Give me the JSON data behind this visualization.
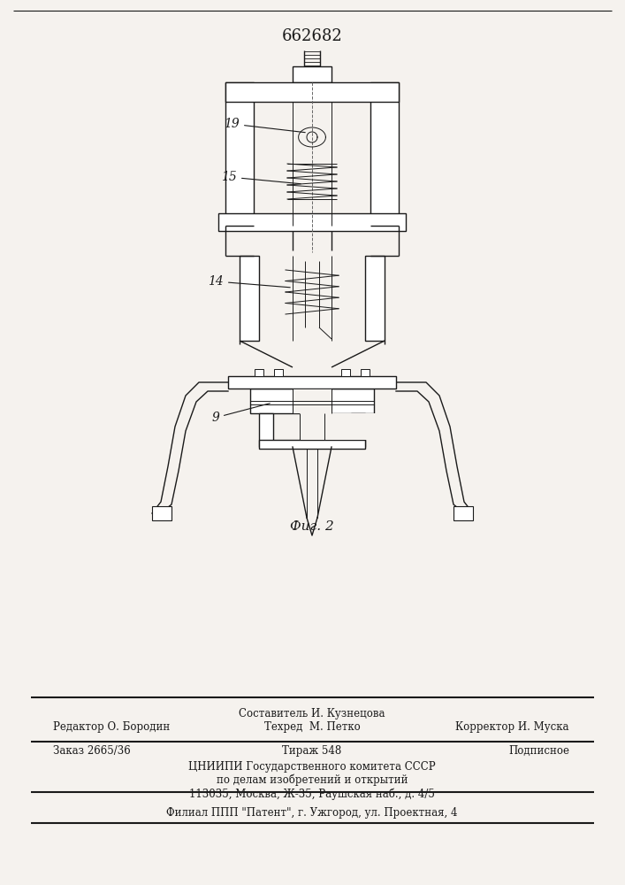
{
  "patent_number": "662682",
  "fig_label": "Фиг. 2",
  "bg_color": "#f5f2ee",
  "line_color": "#1a1a1a",
  "footer_line1": "Составитель И. Кузнецова",
  "footer_line2": "Редактор О. Бородин  Техред  М. Петко     Корректор И. Муска",
  "footer_line3_left": "Заказ 2665/36",
  "footer_line3_mid": "Тираж 548",
  "footer_line3_right": "Подписное",
  "footer_line4": "ЦНИИПИ Государственного комитета СССР",
  "footer_line5": "по делам изобретений и открытий",
  "footer_line6": "113035, Москва, Ж-35, Раушская наб., д. 4/5",
  "footer_line7": "Филиал ППП \"Патент\", г. Ужгород, ул. Проектная, 4"
}
